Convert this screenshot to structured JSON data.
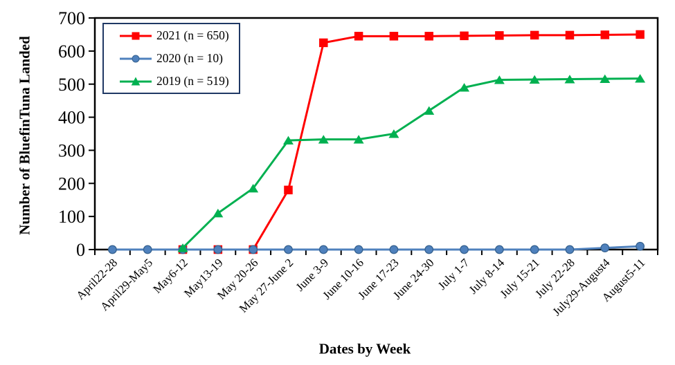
{
  "chart_data": {
    "type": "line",
    "title": "",
    "xlabel": "Dates by Week",
    "ylabel": "Number of BluefinTuna Landed",
    "ylim": [
      0,
      700
    ],
    "yticks": [
      0,
      100,
      200,
      300,
      400,
      500,
      600,
      700
    ],
    "grid": false,
    "legend_position": "top-left-inside",
    "legend_border_color": "#1F3864",
    "axis_color": "#000000",
    "background_color": "#FFFFFF",
    "categories": [
      "April22-28",
      "April29-May5",
      "May6-12",
      "May13-19",
      "May 20-26",
      "May 27-June 2",
      "June 3-9",
      "June 10-16",
      "June 17-23",
      "June 24-30",
      "July 1-7",
      "July 8-14",
      "July 15-21",
      "July 22-28",
      "July29-August4",
      "August5-11"
    ],
    "series": [
      {
        "name": "2021 (n = 650)",
        "color": "#FF0000",
        "marker": "square",
        "marker_edge": "#FF0000",
        "values": [
          null,
          null,
          0,
          0,
          0,
          180,
          625,
          645,
          645,
          645,
          646,
          647,
          648,
          648,
          649,
          650
        ]
      },
      {
        "name": "2020 (n = 10)",
        "color": "#4F81BD",
        "marker": "circle",
        "marker_edge": "#35618F",
        "values": [
          0,
          0,
          0,
          0,
          0,
          0,
          0,
          0,
          0,
          0,
          0,
          0,
          0,
          0,
          5,
          10
        ]
      },
      {
        "name": "2019 (n = 519)",
        "color": "#00B050",
        "marker": "triangle",
        "marker_edge": "#00B050",
        "values": [
          null,
          null,
          5,
          110,
          185,
          330,
          333,
          333,
          350,
          420,
          490,
          513,
          514,
          515,
          516,
          517
        ]
      }
    ]
  }
}
